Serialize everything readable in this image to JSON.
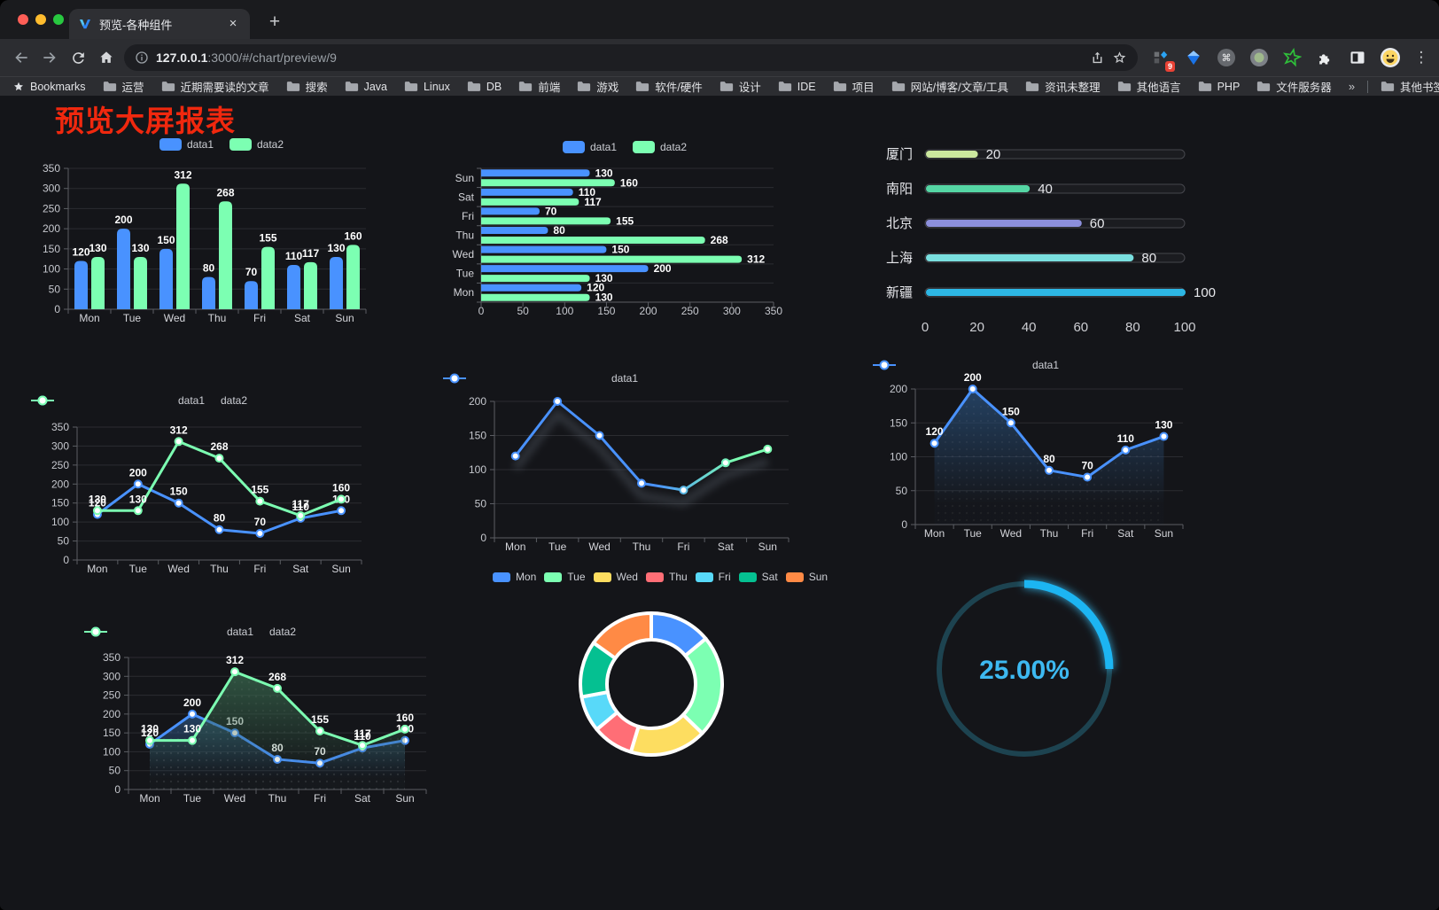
{
  "browser": {
    "window_buttons": {
      "close_color": "#ff5f57",
      "minimize_color": "#febc2e",
      "zoom_color": "#28c840"
    },
    "tab_title": "预览-各种组件",
    "tab_close": "×",
    "new_tab": "+",
    "url_host": "127.0.0.1",
    "url_rest": ":3000/#/chart/preview/9",
    "bookmarks_label": "Bookmarks",
    "bookmarks": [
      "运营",
      "近期需要读的文章",
      "搜索",
      "Java",
      "Linux",
      "DB",
      "前端",
      "游戏",
      "软件/硬件",
      "设计",
      "IDE",
      "项目",
      "网站/博客/文章/工具",
      "资讯未整理",
      "其他语言",
      "PHP",
      "文件服务器"
    ],
    "bookmarks_overflow": "»",
    "other_bookmarks": "其他书签",
    "extension_badge": "9",
    "menu_icon": "⋮"
  },
  "page": {
    "title": "预览大屏报表",
    "title_color": "#f0280e",
    "background": "#141519"
  },
  "chart_data": [
    {
      "id": "bar-vertical",
      "type": "bar",
      "categories": [
        "Mon",
        "Tue",
        "Wed",
        "Thu",
        "Fri",
        "Sat",
        "Sun"
      ],
      "series": [
        {
          "name": "data1",
          "color": "#4992ff",
          "values": [
            120,
            200,
            150,
            80,
            70,
            110,
            130
          ]
        },
        {
          "name": "data2",
          "color": "#7cffb2",
          "values": [
            130,
            130,
            312,
            268,
            155,
            117,
            160
          ]
        }
      ],
      "ylim": [
        0,
        350
      ],
      "ytick": 50,
      "value_labels": true,
      "legend_position": "top",
      "grid": true
    },
    {
      "id": "bar-horizontal",
      "type": "bar",
      "orientation": "horizontal",
      "categories": [
        "Mon",
        "Tue",
        "Wed",
        "Thu",
        "Fri",
        "Sat",
        "Sun"
      ],
      "series": [
        {
          "name": "data1",
          "color": "#4992ff",
          "values": [
            120,
            200,
            150,
            80,
            70,
            110,
            130
          ]
        },
        {
          "name": "data2",
          "color": "#7cffb2",
          "values": [
            130,
            130,
            312,
            268,
            155,
            117,
            160
          ]
        }
      ],
      "xlim": [
        0,
        350
      ],
      "xtick": 50,
      "value_labels": true,
      "legend_position": "top",
      "grid": true
    },
    {
      "id": "progress",
      "type": "bar",
      "variant": "capsule-progress",
      "orientation": "horizontal",
      "categories": [
        "厦门",
        "南阳",
        "北京",
        "上海",
        "新疆"
      ],
      "values": [
        20,
        40,
        60,
        80,
        100
      ],
      "colors": [
        "#cbe79e",
        "#55d6a4",
        "#8c8fdc",
        "#79dfdf",
        "#2db7e5"
      ],
      "xlim": [
        0,
        100
      ],
      "xticks": [
        0,
        20,
        40,
        60,
        80,
        100
      ],
      "value_labels": true
    },
    {
      "id": "line-dual",
      "type": "line",
      "categories": [
        "Mon",
        "Tue",
        "Wed",
        "Thu",
        "Fri",
        "Sat",
        "Sun"
      ],
      "series": [
        {
          "name": "data1",
          "color": "#4992ff",
          "values": [
            120,
            200,
            150,
            80,
            70,
            110,
            130
          ]
        },
        {
          "name": "data2",
          "color": "#7cffb2",
          "values": [
            130,
            130,
            312,
            268,
            155,
            117,
            160
          ]
        }
      ],
      "ylim": [
        0,
        350
      ],
      "ytick": 50,
      "value_labels": true,
      "legend_position": "top",
      "grid": true
    },
    {
      "id": "line-gradient",
      "type": "line",
      "categories": [
        "Mon",
        "Tue",
        "Wed",
        "Thu",
        "Fri",
        "Sat",
        "Sun"
      ],
      "series": [
        {
          "name": "data1",
          "color": "#4992ff",
          "line_gradient": [
            "#4992ff",
            "#7cffb2"
          ],
          "values": [
            120,
            200,
            150,
            80,
            70,
            110,
            130
          ]
        }
      ],
      "ylim": [
        0,
        200
      ],
      "ytick": 50,
      "value_labels": false,
      "shadow": true,
      "legend_position": "top",
      "grid": true
    },
    {
      "id": "area-single",
      "type": "area",
      "categories": [
        "Mon",
        "Tue",
        "Wed",
        "Thu",
        "Fri",
        "Sat",
        "Sun"
      ],
      "series": [
        {
          "name": "data1",
          "color": "#4992ff",
          "area_from": "#27496f",
          "values": [
            120,
            200,
            150,
            80,
            70,
            110,
            130
          ]
        }
      ],
      "ylim": [
        0,
        200
      ],
      "ytick": 50,
      "value_labels": true,
      "legend_position": "top",
      "grid": true
    },
    {
      "id": "area-dual",
      "type": "area",
      "categories": [
        "Mon",
        "Tue",
        "Wed",
        "Thu",
        "Fri",
        "Sat",
        "Sun"
      ],
      "series": [
        {
          "name": "data1",
          "color": "#4992ff",
          "area_from": "#27496f",
          "values": [
            120,
            200,
            150,
            80,
            70,
            110,
            130
          ]
        },
        {
          "name": "data2",
          "color": "#7cffb2",
          "area_from": "#356049",
          "values": [
            130,
            130,
            312,
            268,
            155,
            117,
            160
          ]
        }
      ],
      "ylim": [
        0,
        350
      ],
      "ytick": 50,
      "value_labels": true,
      "legend_position": "top",
      "grid": true
    },
    {
      "id": "donut",
      "type": "pie",
      "categories": [
        "Mon",
        "Tue",
        "Wed",
        "Thu",
        "Fri",
        "Sat",
        "Sun"
      ],
      "values": [
        120,
        200,
        150,
        80,
        70,
        110,
        130
      ],
      "colors": [
        "#4992ff",
        "#7cffb2",
        "#fddd60",
        "#ff6e76",
        "#58d9f9",
        "#05c091",
        "#ff8a45"
      ],
      "inner_radius_pct": 62,
      "border_color": "#ffffff",
      "legend_position": "top"
    },
    {
      "id": "gauge",
      "type": "gauge",
      "value": 25,
      "max": 100,
      "label": "25.00%",
      "color": "#1ab5f2",
      "track_color": "#1d4350",
      "text_color": "#3db9f1"
    }
  ]
}
